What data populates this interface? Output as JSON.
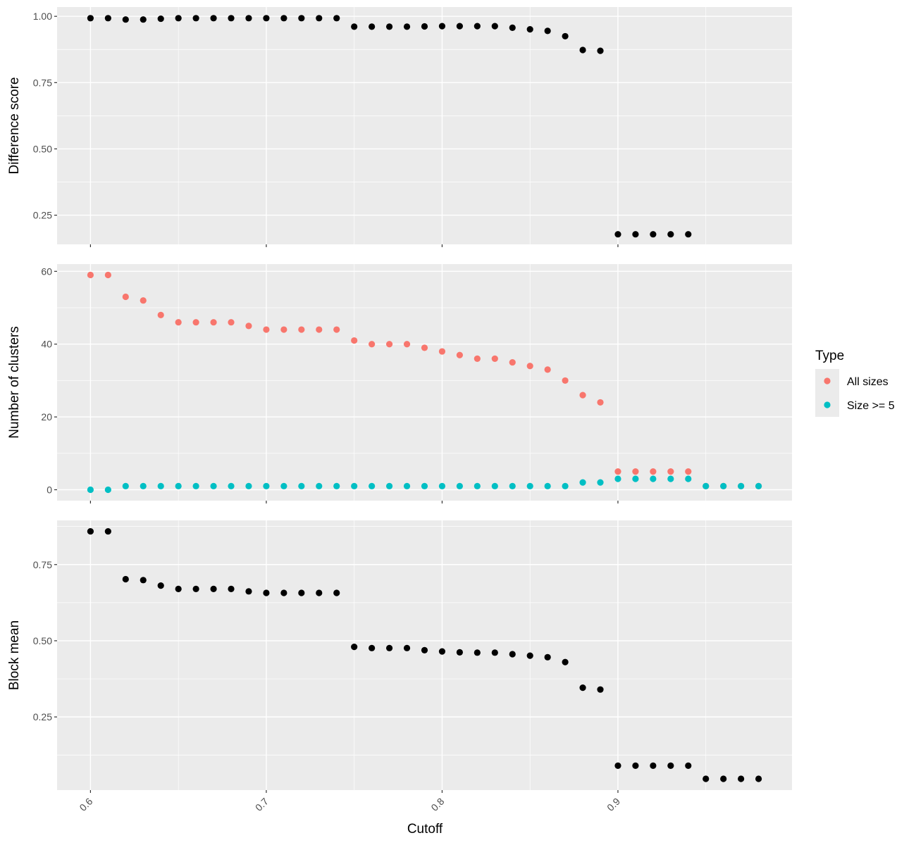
{
  "chart_data": {
    "type": "scatter",
    "shared_x": {
      "label": "Cutoff",
      "ticks": [
        0.6,
        0.7,
        0.8,
        0.9
      ],
      "tick_labels": [
        "0.6",
        "0.7",
        "0.8",
        "0.9"
      ],
      "range": [
        0.581,
        0.999
      ]
    },
    "panels": [
      {
        "id": "difference",
        "ylabel": "Difference score",
        "ylim": [
          0.14,
          1.035
        ],
        "yticks": [
          0.25,
          0.5,
          0.75,
          1.0
        ],
        "ytick_labels": [
          "0.25",
          "0.50",
          "0.75",
          "1.00"
        ],
        "series": [
          {
            "color": "#000000",
            "x": [
              0.6,
              0.61,
              0.62,
              0.63,
              0.64,
              0.65,
              0.66,
              0.67,
              0.68,
              0.69,
              0.7,
              0.71,
              0.72,
              0.73,
              0.74,
              0.75,
              0.76,
              0.77,
              0.78,
              0.79,
              0.8,
              0.81,
              0.82,
              0.83,
              0.84,
              0.85,
              0.86,
              0.87,
              0.88,
              0.89,
              0.9,
              0.91,
              0.92,
              0.93,
              0.94
            ],
            "y": [
              0.993,
              0.993,
              0.988,
              0.988,
              0.991,
              0.993,
              0.993,
              0.993,
              0.993,
              0.993,
              0.993,
              0.993,
              0.993,
              0.993,
              0.993,
              0.961,
              0.961,
              0.961,
              0.961,
              0.962,
              0.963,
              0.963,
              0.963,
              0.963,
              0.957,
              0.951,
              0.945,
              0.925,
              0.873,
              0.87,
              0.178,
              0.178,
              0.178,
              0.178,
              0.178
            ]
          }
        ]
      },
      {
        "id": "clusters",
        "ylabel": "Number of clusters",
        "ylim": [
          -3,
          62
        ],
        "yticks": [
          0,
          20,
          40,
          60
        ],
        "ytick_labels": [
          "0",
          "20",
          "40",
          "60"
        ],
        "series": [
          {
            "name": "All sizes",
            "color": "#F8766D",
            "x": [
              0.6,
              0.61,
              0.62,
              0.63,
              0.64,
              0.65,
              0.66,
              0.67,
              0.68,
              0.69,
              0.7,
              0.71,
              0.72,
              0.73,
              0.74,
              0.75,
              0.76,
              0.77,
              0.78,
              0.79,
              0.8,
              0.81,
              0.82,
              0.83,
              0.84,
              0.85,
              0.86,
              0.87,
              0.88,
              0.89,
              0.9,
              0.91,
              0.92,
              0.93,
              0.94,
              0.95,
              0.96,
              0.97,
              0.98
            ],
            "y": [
              59,
              59,
              53,
              52,
              48,
              46,
              46,
              46,
              46,
              45,
              44,
              44,
              44,
              44,
              44,
              41,
              40,
              40,
              40,
              39,
              38,
              37,
              36,
              36,
              35,
              34,
              33,
              30,
              26,
              24,
              5,
              5,
              5,
              5,
              5,
              1,
              1,
              1,
              1
            ]
          },
          {
            "name": "Size >= 5",
            "color": "#00BFC4",
            "x": [
              0.6,
              0.61,
              0.62,
              0.63,
              0.64,
              0.65,
              0.66,
              0.67,
              0.68,
              0.69,
              0.7,
              0.71,
              0.72,
              0.73,
              0.74,
              0.75,
              0.76,
              0.77,
              0.78,
              0.79,
              0.8,
              0.81,
              0.82,
              0.83,
              0.84,
              0.85,
              0.86,
              0.87,
              0.88,
              0.89,
              0.9,
              0.91,
              0.92,
              0.93,
              0.94,
              0.95,
              0.96,
              0.97,
              0.98
            ],
            "y": [
              0,
              0,
              1,
              1,
              1,
              1,
              1,
              1,
              1,
              1,
              1,
              1,
              1,
              1,
              1,
              1,
              1,
              1,
              1,
              1,
              1,
              1,
              1,
              1,
              1,
              1,
              1,
              1,
              2,
              2,
              3,
              3,
              3,
              3,
              3,
              1,
              1,
              1,
              1
            ]
          }
        ]
      },
      {
        "id": "blockmean",
        "ylabel": "Block mean",
        "ylim": [
          0.01,
          0.895
        ],
        "yticks": [
          0.25,
          0.5,
          0.75
        ],
        "ytick_labels": [
          "0.25",
          "0.50",
          "0.75"
        ],
        "series": [
          {
            "color": "#000000",
            "x": [
              0.6,
              0.61,
              0.62,
              0.63,
              0.64,
              0.65,
              0.66,
              0.67,
              0.68,
              0.69,
              0.7,
              0.71,
              0.72,
              0.73,
              0.74,
              0.75,
              0.76,
              0.77,
              0.78,
              0.79,
              0.8,
              0.81,
              0.82,
              0.83,
              0.84,
              0.85,
              0.86,
              0.87,
              0.88,
              0.89,
              0.9,
              0.91,
              0.92,
              0.93,
              0.94,
              0.95,
              0.96,
              0.97,
              0.98
            ],
            "y": [
              0.859,
              0.859,
              0.702,
              0.699,
              0.681,
              0.67,
              0.67,
              0.67,
              0.67,
              0.662,
              0.657,
              0.657,
              0.657,
              0.657,
              0.657,
              0.48,
              0.476,
              0.476,
              0.476,
              0.469,
              0.465,
              0.462,
              0.461,
              0.461,
              0.456,
              0.451,
              0.446,
              0.43,
              0.346,
              0.34,
              0.09,
              0.09,
              0.09,
              0.09,
              0.09,
              0.047,
              0.047,
              0.047,
              0.047
            ]
          }
        ]
      }
    ],
    "legend": {
      "title": "Type",
      "placement": "right",
      "entries": [
        {
          "label": "All sizes",
          "color": "#F8766D"
        },
        {
          "label": "Size >= 5",
          "color": "#00BFC4"
        }
      ]
    },
    "grid": true
  }
}
